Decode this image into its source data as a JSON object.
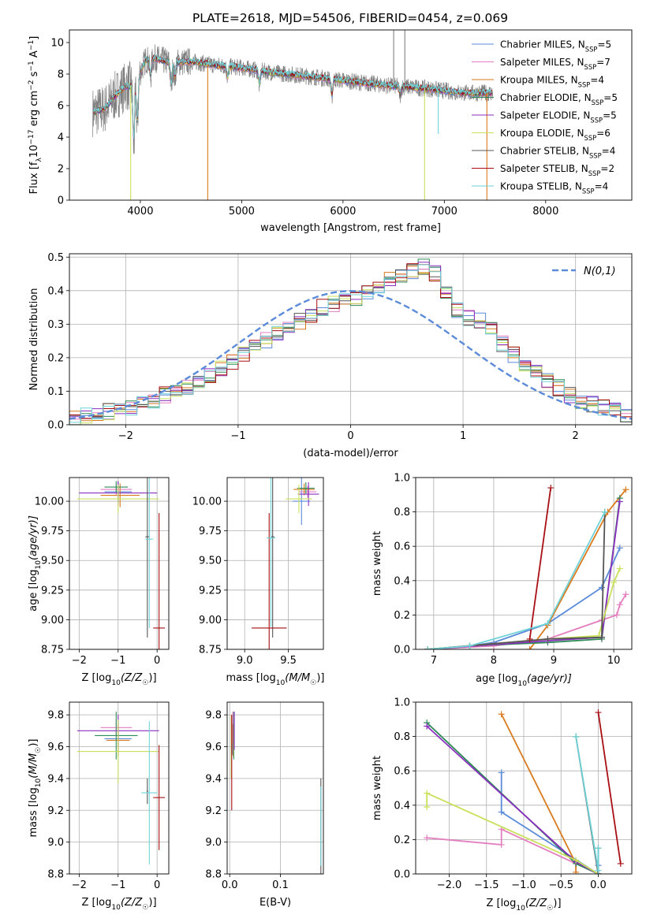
{
  "figure_title": "PLATE=2618, MJD=54506, FIBERID=0454, z=0.069",
  "colors": {
    "Chabrier MILES": "#5b8bd9",
    "Salpeter MILES": "#e37fbf",
    "Kroupa MILES": "#d97a1e",
    "Chabrier ELODIE": "#2e8b57",
    "Salpeter ELODIE": "#8a2fbf",
    "Kroupa ELODIE": "#c8e05a",
    "Chabrier STELIB": "#555555",
    "Salpeter STELIB": "#a80f14",
    "Kroupa STELIB": "#6fd3d8"
  },
  "legend_labels": [
    {
      "pre": "Chabrier MILES, N",
      "sub": "SSP",
      "post": "=5"
    },
    {
      "pre": "Salpeter MILES, N",
      "sub": "SSP",
      "post": "=7"
    },
    {
      "pre": "Kroupa MILES, N",
      "sub": "SSP",
      "post": "=4"
    },
    {
      "pre": "Chabrier ELODIE, N",
      "sub": "SSP",
      "post": "=5"
    },
    {
      "pre": "Salpeter ELODIE, N",
      "sub": "SSP",
      "post": "=5"
    },
    {
      "pre": "Kroupa ELODIE, N",
      "sub": "SSP",
      "post": "=6"
    },
    {
      "pre": "Chabrier STELIB, N",
      "sub": "SSP",
      "post": "=4"
    },
    {
      "pre": "Salpeter STELIB, N",
      "sub": "SSP",
      "post": "=2"
    },
    {
      "pre": "Kroupa STELIB, N",
      "sub": "SSP",
      "post": "=4"
    }
  ],
  "chart_data": [
    {
      "id": "spectrum",
      "type": "line",
      "xlabel": "wavelength [Angstrom, rest frame]",
      "ylabel_parts": [
        "Flux [f",
        "λ",
        "10",
        "−17",
        " erg cm",
        "−2",
        " s",
        "−1",
        " A",
        "−1",
        "]"
      ],
      "xlim": [
        3300,
        8850
      ],
      "ylim": [
        0,
        10.8
      ],
      "xticks": [
        4000,
        5000,
        6000,
        7000,
        8000
      ],
      "yticks": [
        0,
        2,
        4,
        6,
        8,
        10
      ],
      "continuum": {
        "wavelength": [
          3550,
          3650,
          3750,
          3850,
          3950,
          4050,
          4150,
          4300,
          4500,
          4700,
          5000,
          5300,
          5600,
          6000,
          6400,
          6800,
          7200,
          7500
        ],
        "flux": [
          5.6,
          5.8,
          6.6,
          7.2,
          7.3,
          8.9,
          9.0,
          8.7,
          8.8,
          8.6,
          8.4,
          8.1,
          7.9,
          7.6,
          7.3,
          7.1,
          6.8,
          6.8
        ]
      },
      "absorption_features": [
        {
          "wavelength": 3935,
          "depth": 4.0
        },
        {
          "wavelength": 3970,
          "depth": 3.0
        },
        {
          "wavelength": 4100,
          "depth": 1.2
        },
        {
          "wavelength": 4305,
          "depth": 1.5
        },
        {
          "wavelength": 4340,
          "depth": 1.0
        },
        {
          "wavelength": 4861,
          "depth": 0.8
        },
        {
          "wavelength": 5175,
          "depth": 1.0
        },
        {
          "wavelength": 5890,
          "depth": 1.1
        },
        {
          "wavelength": 6563,
          "depth": 0.6
        }
      ],
      "spikes": [
        {
          "wavelength": 3905,
          "value": 0.0,
          "series": "Kroupa ELODIE"
        },
        {
          "wavelength": 4665,
          "value": 0.0,
          "series": "Kroupa MILES"
        },
        {
          "wavelength": 6805,
          "value": 0.0,
          "series": "Kroupa ELODIE"
        },
        {
          "wavelength": 6940,
          "value": 4.2,
          "series": "Kroupa STELIB"
        },
        {
          "wavelength": 7420,
          "value": 0.0,
          "series": "Kroupa MILES"
        },
        {
          "wavelength": 6500,
          "value": 10.8,
          "series": "observed"
        },
        {
          "wavelength": 6610,
          "value": 10.8,
          "series": "observed"
        }
      ]
    },
    {
      "id": "residuals",
      "type": "step",
      "xlabel": "(data-model)/error",
      "ylabel": "Normed distribution",
      "xlim": [
        -2.5,
        2.5
      ],
      "ylim": [
        0,
        0.51
      ],
      "xticks": [
        -2,
        -1,
        0,
        1,
        2
      ],
      "yticks": [
        0.0,
        0.1,
        0.2,
        0.3,
        0.4,
        0.5
      ],
      "grid": true,
      "legend": "N(0,1)",
      "legend_position": "top-right",
      "bin_width": 0.1,
      "bin_start": -2.5,
      "histogram_values": [
        0.02,
        0.03,
        0.03,
        0.04,
        0.04,
        0.05,
        0.06,
        0.07,
        0.09,
        0.1,
        0.11,
        0.13,
        0.15,
        0.17,
        0.19,
        0.21,
        0.23,
        0.25,
        0.27,
        0.29,
        0.31,
        0.33,
        0.35,
        0.36,
        0.37,
        0.38,
        0.4,
        0.41,
        0.43,
        0.45,
        0.46,
        0.47,
        0.45,
        0.39,
        0.34,
        0.32,
        0.31,
        0.28,
        0.24,
        0.21,
        0.18,
        0.16,
        0.13,
        0.11,
        0.09,
        0.07,
        0.06,
        0.05,
        0.04,
        0.03
      ]
    },
    {
      "id": "age-vs-Z",
      "type": "errorbar",
      "xlabel_parts": [
        "Z [log",
        "10",
        "(Z/Z",
        "☉",
        ")]"
      ],
      "ylabel_parts": [
        "age  [log",
        "10",
        "(age/yr)]"
      ],
      "xlim": [
        -2.25,
        0.3
      ],
      "ylim": [
        8.75,
        10.2
      ],
      "xticks": [
        -2,
        -1,
        0
      ],
      "yticks": [
        8.75,
        9.0,
        9.25,
        9.5,
        9.75,
        10.0
      ],
      "points": [
        {
          "series": "Chabrier MILES",
          "x": -1.0,
          "y": 10.08,
          "xerr": 0.35,
          "yerr": 0.08
        },
        {
          "series": "Salpeter MILES",
          "x": -1.05,
          "y": 10.1,
          "xerr": 0.4,
          "yerr": 0.05
        },
        {
          "series": "Kroupa MILES",
          "x": -0.95,
          "y": 10.05,
          "xerr": 0.5,
          "yerr": 0.1
        },
        {
          "series": "Chabrier ELODIE",
          "x": -1.05,
          "y": 10.12,
          "xerr": 0.3,
          "yerr": 0.05
        },
        {
          "series": "Salpeter ELODIE",
          "x": -1.0,
          "y": 10.07,
          "xerr": 1.0,
          "yerr": 0.1
        },
        {
          "series": "Kroupa ELODIE",
          "x": -1.0,
          "y": 10.02,
          "xerr": 1.05,
          "yerr": 0.12
        },
        {
          "series": "Chabrier STELIB",
          "x": -0.25,
          "y": 9.7,
          "xerr": 0.05,
          "yerr": 0.85
        },
        {
          "series": "Salpeter STELIB",
          "x": 0.05,
          "y": 8.93,
          "xerr": 0.15,
          "yerr": 0.97
        },
        {
          "series": "Kroupa STELIB",
          "x": -0.2,
          "y": 9.68,
          "xerr": 0.1,
          "yerr": 0.75
        }
      ]
    },
    {
      "id": "age-vs-mass",
      "type": "errorbar",
      "xlabel_parts": [
        "mass [log",
        "10",
        "(M/M",
        "☉",
        ")]"
      ],
      "xlim": [
        8.8,
        9.9
      ],
      "ylim": [
        8.75,
        10.2
      ],
      "xticks": [
        9.0,
        9.5
      ],
      "yticks": [
        8.75,
        9.0,
        9.25,
        9.5,
        9.75,
        10.0
      ],
      "points": [
        {
          "series": "Chabrier MILES",
          "x": 9.65,
          "y": 10.0,
          "xerr": 0.1,
          "yerr": 0.2
        },
        {
          "series": "Salpeter MILES",
          "x": 9.72,
          "y": 10.08,
          "xerr": 0.1,
          "yerr": 0.05
        },
        {
          "series": "Kroupa MILES",
          "x": 9.68,
          "y": 10.1,
          "xerr": 0.12,
          "yerr": 0.05
        },
        {
          "series": "Chabrier ELODIE",
          "x": 9.7,
          "y": 10.11,
          "xerr": 0.1,
          "yerr": 0.05
        },
        {
          "series": "Salpeter ELODIE",
          "x": 9.73,
          "y": 10.06,
          "xerr": 0.12,
          "yerr": 0.1
        },
        {
          "series": "Kroupa ELODIE",
          "x": 9.62,
          "y": 10.02,
          "xerr": 0.15,
          "yerr": 0.12
        },
        {
          "series": "Chabrier STELIB",
          "x": 9.32,
          "y": 9.7,
          "xerr": 0.02,
          "yerr": 0.85
        },
        {
          "series": "Salpeter STELIB",
          "x": 9.28,
          "y": 8.93,
          "xerr": 0.2,
          "yerr": 0.97
        },
        {
          "series": "Kroupa STELIB",
          "x": 9.3,
          "y": 9.69,
          "xerr": 0.05,
          "yerr": 0.75
        }
      ]
    },
    {
      "id": "weight-vs-age",
      "type": "line",
      "xlabel_parts": [
        "age  [log",
        "10",
        "(age/yr)]"
      ],
      "ylabel": "mass weight",
      "xlim": [
        6.7,
        10.3
      ],
      "ylim": [
        0,
        1.0
      ],
      "xticks": [
        7,
        8,
        9,
        10
      ],
      "yticks": [
        0.0,
        0.2,
        0.4,
        0.6,
        0.8,
        1.0
      ],
      "series": [
        {
          "name": "Chabrier MILES",
          "x": [
            6.9,
            7.6,
            8.0,
            8.9,
            9.8,
            10.1
          ],
          "y": [
            0.0,
            0.02,
            0.04,
            0.15,
            0.36,
            0.59
          ]
        },
        {
          "name": "Salpeter MILES",
          "x": [
            6.9,
            8.0,
            8.9,
            9.8,
            10.05,
            10.1,
            10.2
          ],
          "y": [
            0.0,
            0.02,
            0.06,
            0.17,
            0.2,
            0.26,
            0.32
          ]
        },
        {
          "name": "Kroupa MILES",
          "x": [
            8.6,
            8.9,
            9.9,
            10.2
          ],
          "y": [
            0.0,
            0.14,
            0.8,
            0.93
          ]
        },
        {
          "name": "Chabrier ELODIE",
          "x": [
            6.9,
            7.6,
            8.9,
            9.8,
            10.1
          ],
          "y": [
            0.0,
            0.02,
            0.04,
            0.06,
            0.88
          ]
        },
        {
          "name": "Salpeter ELODIE",
          "x": [
            6.9,
            8.9,
            9.8,
            10.1
          ],
          "y": [
            0.0,
            0.05,
            0.07,
            0.86
          ]
        },
        {
          "name": "Kroupa ELODIE",
          "x": [
            6.9,
            8.9,
            9.75,
            10.0,
            10.1
          ],
          "y": [
            0.0,
            0.06,
            0.08,
            0.39,
            0.47
          ]
        },
        {
          "name": "Chabrier STELIB",
          "x": [
            6.9,
            8.9,
            9.8,
            9.85
          ],
          "y": [
            0.0,
            0.06,
            0.07,
            0.8
          ]
        },
        {
          "name": "Salpeter STELIB",
          "x": [
            8.6,
            8.95
          ],
          "y": [
            0.06,
            0.94
          ]
        },
        {
          "name": "Kroupa STELIB",
          "x": [
            6.9,
            7.6,
            8.9,
            9.85
          ],
          "y": [
            0.0,
            0.02,
            0.15,
            0.8
          ]
        }
      ]
    },
    {
      "id": "mass-vs-Z",
      "type": "errorbar",
      "xlabel_parts": [
        "Z [log",
        "10",
        "(Z/Z",
        "☉",
        ")]"
      ],
      "ylabel_parts": [
        "mass [log",
        "10",
        "(M/M",
        "☉",
        ")]"
      ],
      "xlim": [
        -2.25,
        0.3
      ],
      "ylim": [
        8.8,
        9.88
      ],
      "xticks": [
        -2,
        -1,
        0
      ],
      "yticks": [
        8.8,
        9.0,
        9.2,
        9.4,
        9.6,
        9.8
      ],
      "points": [
        {
          "series": "Chabrier MILES",
          "x": -1.0,
          "y": 9.65,
          "xerr": 0.35,
          "yerr": 0.1
        },
        {
          "series": "Salpeter MILES",
          "x": -1.05,
          "y": 9.72,
          "xerr": 0.4,
          "yerr": 0.05
        },
        {
          "series": "Kroupa MILES",
          "x": -1.0,
          "y": 9.64,
          "xerr": 0.3,
          "yerr": 0.1
        },
        {
          "series": "Chabrier ELODIE",
          "x": -1.05,
          "y": 9.67,
          "xerr": 0.55,
          "yerr": 0.15
        },
        {
          "series": "Salpeter ELODIE",
          "x": -1.0,
          "y": 9.7,
          "xerr": 1.05,
          "yerr": 0.1
        },
        {
          "series": "Kroupa ELODIE",
          "x": -1.0,
          "y": 9.57,
          "xerr": 1.05,
          "yerr": 0.2
        },
        {
          "series": "Chabrier STELIB",
          "x": -0.25,
          "y": 9.32,
          "xerr": 0.02,
          "yerr": 0.08
        },
        {
          "series": "Salpeter STELIB",
          "x": 0.05,
          "y": 9.28,
          "xerr": 0.15,
          "yerr": 0.33
        },
        {
          "series": "Kroupa STELIB",
          "x": -0.2,
          "y": 9.31,
          "xerr": 0.2,
          "yerr": 0.45
        }
      ]
    },
    {
      "id": "mass-vs-EBV",
      "type": "errorbar",
      "xlabel": "E(B-V)",
      "xlim": [
        -0.005,
        0.185
      ],
      "ylim": [
        8.8,
        9.88
      ],
      "xticks": [
        0.0,
        0.1
      ],
      "yticks": [
        8.8,
        9.0,
        9.2,
        9.4,
        9.6,
        9.8
      ],
      "points": [
        {
          "series": "Chabrier MILES",
          "x": 0.005,
          "y": 9.65,
          "xerr": 0,
          "yerr": 0.1
        },
        {
          "series": "Salpeter MILES",
          "x": 0.006,
          "y": 9.72,
          "xerr": 0,
          "yerr": 0.1
        },
        {
          "series": "Kroupa MILES",
          "x": 0.007,
          "y": 9.64,
          "xerr": 0,
          "yerr": 0.1
        },
        {
          "series": "Chabrier ELODIE",
          "x": 0.008,
          "y": 9.67,
          "xerr": 0,
          "yerr": 0.15
        },
        {
          "series": "Salpeter ELODIE",
          "x": 0.009,
          "y": 9.7,
          "xerr": 0,
          "yerr": 0.12
        },
        {
          "series": "Kroupa ELODIE",
          "x": 0.003,
          "y": 9.6,
          "xerr": 0,
          "yerr": 0.2
        },
        {
          "series": "Chabrier STELIB",
          "x": 0.18,
          "y": 9.1,
          "xerr": 0,
          "yerr": 0.3
        },
        {
          "series": "Salpeter STELIB",
          "x": 0.004,
          "y": 9.5,
          "xerr": 0,
          "yerr": 0.3
        },
        {
          "series": "Kroupa STELIB",
          "x": 0.18,
          "y": 9.1,
          "xerr": 0,
          "yerr": 0.25
        }
      ]
    },
    {
      "id": "weight-vs-Z",
      "type": "line",
      "xlabel_parts": [
        "Z [log",
        "10",
        "(Z/Z",
        "☉",
        ")]"
      ],
      "ylabel": "mass weight",
      "xlim": [
        -2.45,
        0.45
      ],
      "ylim": [
        0,
        1.0
      ],
      "xticks": [
        -2.0,
        -1.5,
        -1.0,
        -0.5,
        0.0
      ],
      "yticks": [
        0.0,
        0.2,
        0.4,
        0.6,
        0.8,
        1.0
      ],
      "series": [
        {
          "name": "Chabrier MILES",
          "x": [
            -1.3,
            -1.3,
            0.0,
            0.0
          ],
          "y": [
            0.59,
            0.36,
            0.0,
            0.05
          ]
        },
        {
          "name": "Salpeter MILES",
          "x": [
            -2.3,
            -1.3,
            -1.3,
            0.0
          ],
          "y": [
            0.21,
            0.17,
            0.26,
            0.0
          ]
        },
        {
          "name": "Kroupa MILES",
          "x": [
            -1.3,
            -0.3,
            -0.3
          ],
          "y": [
            0.93,
            0.06,
            0.01
          ]
        },
        {
          "name": "Chabrier ELODIE",
          "x": [
            -2.3,
            -0.3,
            0.0
          ],
          "y": [
            0.88,
            0.06,
            0.0
          ]
        },
        {
          "name": "Salpeter ELODIE",
          "x": [
            -2.3,
            -0.3,
            0.0
          ],
          "y": [
            0.86,
            0.07,
            0.0
          ]
        },
        {
          "name": "Kroupa ELODIE",
          "x": [
            -2.3,
            -2.3,
            -0.3,
            0.0
          ],
          "y": [
            0.39,
            0.47,
            0.08,
            0.0
          ]
        },
        {
          "name": "Chabrier STELIB",
          "x": [
            -0.3,
            0.0,
            0.0
          ],
          "y": [
            0.8,
            0.0,
            0.15
          ]
        },
        {
          "name": "Salpeter STELIB",
          "x": [
            0.0,
            0.3
          ],
          "y": [
            0.94,
            0.06
          ]
        },
        {
          "name": "Kroupa STELIB",
          "x": [
            -0.3,
            0.0,
            0.0
          ],
          "y": [
            0.8,
            0.02,
            0.15
          ]
        }
      ]
    }
  ]
}
